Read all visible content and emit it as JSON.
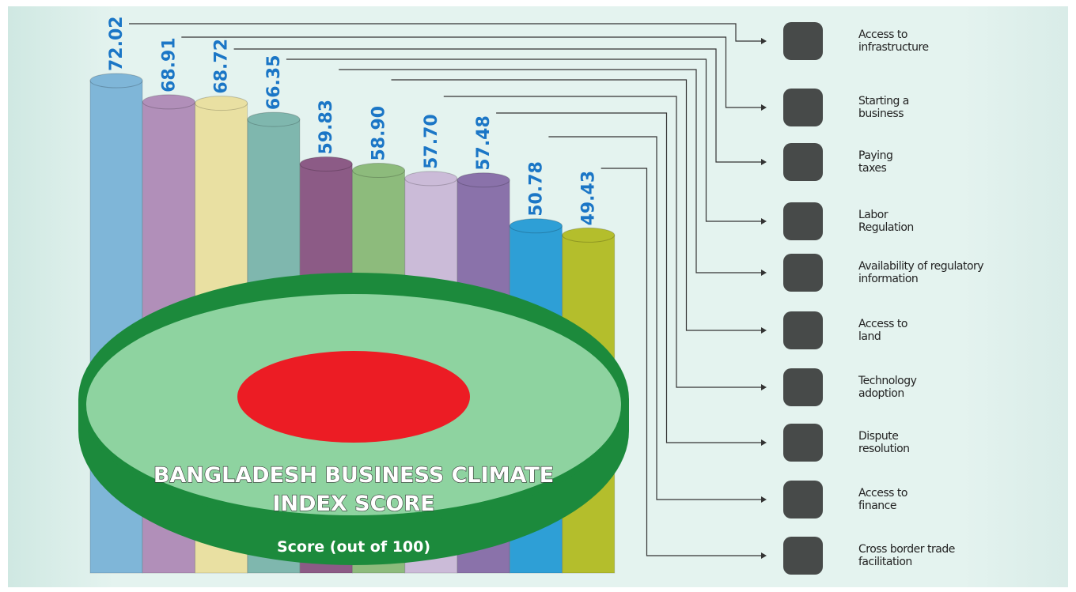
{
  "chart_data": {
    "type": "bar",
    "title": "BANGLADESH BUSINESS CLIMATE\nINDEX  SCORE",
    "subtitle": "Score (out of 100)",
    "categories": [
      "Access to\ninfrastructure",
      "Starting a\nbusiness",
      "Paying\ntaxes",
      "Labor\nRegulation",
      "Availability of regulatory\ninformation",
      "Access to\nland",
      "Technology\nadoption",
      "Dispute\nresolution",
      "Access to\nfinance",
      "Cross border trade\nfacilitation"
    ],
    "values": [
      72.02,
      68.91,
      68.72,
      66.35,
      59.83,
      58.9,
      57.7,
      57.48,
      50.78,
      49.43
    ],
    "value_labels": [
      "72.02",
      "68.91",
      "68.72",
      "66.35",
      "59.83",
      "58.90",
      "57.70",
      "57.48",
      "50.78",
      "49.43"
    ],
    "colors": [
      "#7fb6d8",
      "#b18fb9",
      "#e9e0a2",
      "#7fb7ae",
      "#8c5b86",
      "#8dbb7c",
      "#cbbbd8",
      "#8a72aa",
      "#2e9fd6",
      "#b4be2c"
    ]
  }
}
